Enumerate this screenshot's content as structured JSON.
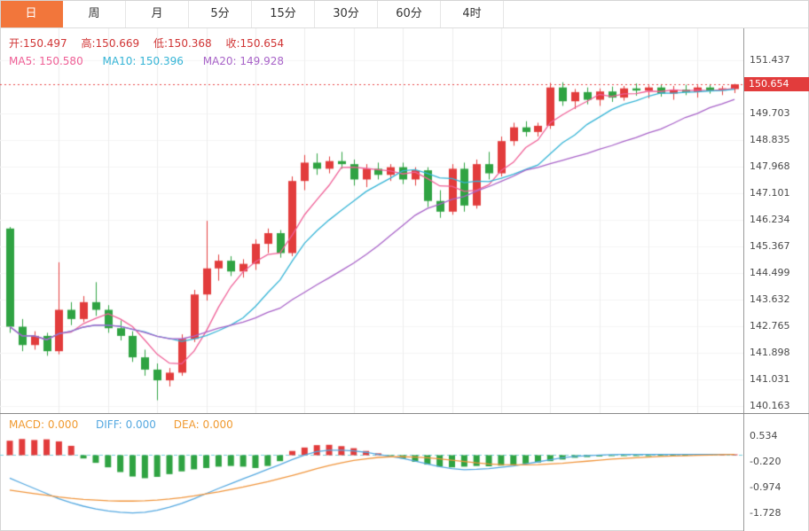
{
  "tabs": {
    "items": [
      {
        "label": "日",
        "active": true
      },
      {
        "label": "周",
        "active": false
      },
      {
        "label": "月",
        "active": false
      },
      {
        "label": "5分",
        "active": false
      },
      {
        "label": "15分",
        "active": false
      },
      {
        "label": "30分",
        "active": false
      },
      {
        "label": "60分",
        "active": false
      },
      {
        "label": "4时",
        "active": false
      }
    ]
  },
  "ohlc": {
    "open_label": "开:",
    "open": "150.497",
    "high_label": "高:",
    "high": "150.669",
    "low_label": "低:",
    "low": "150.368",
    "close_label": "收:",
    "close": "150.654"
  },
  "ma": {
    "ma5_label": "MA5:",
    "ma5": "150.580",
    "ma10_label": "MA10:",
    "ma10": "150.396",
    "ma20_label": "MA20:",
    "ma20": "149.928"
  },
  "macd_info": {
    "macd_label": "MACD:",
    "macd": "0.000",
    "diff_label": "DIFF:",
    "diff": "0.000",
    "dea_label": "DEA:",
    "dea": "0.000"
  },
  "colors": {
    "up": "#e23c3c",
    "down": "#2fa342",
    "ma5": "#ef5f96",
    "ma10": "#35b4d6",
    "ma20": "#a863c8",
    "diff_line": "#54a8e0",
    "dea_line": "#f0953c",
    "zero_dash": "#7ad0dc",
    "price_line": "#e84848",
    "price_tag_bg": "#e23c3c",
    "grid": "#ededed",
    "grid_h": "#f4f4f4",
    "active_tab": "#f2763b"
  },
  "chart_data": [
    {
      "type": "candlestick",
      "title": "",
      "y_ticks": [
        "151.437",
        "149.703",
        "148.835",
        "147.968",
        "147.101",
        "146.234",
        "145.367",
        "144.499",
        "143.632",
        "142.765",
        "141.898",
        "141.031",
        "140.163"
      ],
      "current_price": {
        "label": "150.654",
        "value": 150.654
      },
      "ma_periods": [
        5,
        10,
        20
      ],
      "grid": true,
      "candles": [
        [
          145.95,
          146.0,
          142.55,
          142.75
        ],
        [
          142.75,
          143.0,
          141.95,
          142.15
        ],
        [
          142.15,
          142.6,
          142.0,
          142.45
        ],
        [
          142.45,
          142.55,
          141.8,
          141.95
        ],
        [
          141.95,
          144.85,
          141.85,
          143.3
        ],
        [
          143.3,
          143.55,
          142.8,
          143.0
        ],
        [
          143.0,
          143.75,
          142.9,
          143.55
        ],
        [
          143.55,
          144.2,
          143.1,
          143.3
        ],
        [
          143.3,
          143.45,
          142.55,
          142.7
        ],
        [
          142.7,
          142.95,
          142.3,
          142.45
        ],
        [
          142.45,
          142.6,
          141.6,
          141.75
        ],
        [
          141.75,
          142.0,
          141.15,
          141.35
        ],
        [
          141.35,
          141.55,
          140.35,
          141.0
        ],
        [
          141.0,
          141.4,
          140.8,
          141.25
        ],
        [
          141.25,
          142.5,
          141.15,
          142.35
        ],
        [
          142.35,
          143.95,
          142.25,
          143.8
        ],
        [
          143.8,
          146.2,
          143.6,
          144.65
        ],
        [
          144.65,
          145.1,
          144.25,
          144.9
        ],
        [
          144.9,
          145.05,
          144.4,
          144.55
        ],
        [
          144.55,
          144.95,
          144.35,
          144.8
        ],
        [
          144.8,
          145.6,
          144.6,
          145.45
        ],
        [
          145.45,
          145.95,
          145.15,
          145.8
        ],
        [
          145.8,
          145.9,
          145.0,
          145.15
        ],
        [
          145.15,
          147.65,
          145.05,
          147.5
        ],
        [
          147.5,
          148.35,
          147.2,
          148.1
        ],
        [
          148.1,
          148.4,
          147.7,
          147.9
        ],
        [
          147.9,
          148.3,
          147.75,
          148.15
        ],
        [
          148.15,
          148.45,
          147.9,
          148.05
        ],
        [
          148.05,
          148.2,
          147.35,
          147.55
        ],
        [
          147.55,
          148.05,
          147.3,
          147.9
        ],
        [
          147.9,
          148.1,
          147.55,
          147.7
        ],
        [
          147.7,
          148.05,
          147.5,
          147.95
        ],
        [
          147.95,
          148.1,
          147.4,
          147.55
        ],
        [
          147.55,
          147.95,
          147.35,
          147.85
        ],
        [
          147.85,
          147.95,
          146.65,
          146.85
        ],
        [
          146.85,
          147.2,
          146.3,
          146.5
        ],
        [
          146.5,
          148.05,
          146.4,
          147.9
        ],
        [
          147.9,
          148.1,
          146.5,
          146.7
        ],
        [
          146.7,
          148.2,
          146.6,
          148.05
        ],
        [
          148.05,
          148.45,
          147.55,
          147.75
        ],
        [
          147.75,
          148.95,
          147.65,
          148.8
        ],
        [
          148.8,
          149.4,
          148.65,
          149.25
        ],
        [
          149.25,
          149.45,
          148.95,
          149.1
        ],
        [
          149.1,
          149.4,
          148.95,
          149.3
        ],
        [
          149.3,
          150.7,
          149.2,
          150.55
        ],
        [
          150.55,
          150.72,
          149.95,
          150.1
        ],
        [
          150.1,
          150.5,
          149.85,
          150.4
        ],
        [
          150.4,
          150.55,
          150.0,
          150.15
        ],
        [
          150.15,
          150.52,
          149.95,
          150.42
        ],
        [
          150.42,
          150.58,
          150.08,
          150.22
        ],
        [
          150.22,
          150.6,
          150.12,
          150.52
        ],
        [
          150.52,
          150.68,
          150.28,
          150.45
        ],
        [
          150.45,
          150.62,
          150.2,
          150.55
        ],
        [
          150.55,
          150.66,
          150.25,
          150.35
        ],
        [
          150.35,
          150.6,
          150.15,
          150.48
        ],
        [
          150.48,
          150.64,
          150.3,
          150.4
        ],
        [
          150.4,
          150.62,
          150.22,
          150.55
        ],
        [
          150.55,
          150.66,
          150.35,
          150.45
        ],
        [
          150.45,
          150.6,
          150.3,
          150.52
        ],
        [
          150.497,
          150.669,
          150.368,
          150.654
        ]
      ]
    },
    {
      "type": "macd",
      "y_ticks": [
        "0.534",
        "-0.220",
        "-0.974",
        "-1.728"
      ],
      "histogram": [
        0.4,
        0.45,
        0.42,
        0.44,
        0.38,
        0.25,
        -0.12,
        -0.25,
        -0.38,
        -0.52,
        -0.65,
        -0.7,
        -0.66,
        -0.58,
        -0.5,
        -0.44,
        -0.4,
        -0.36,
        -0.34,
        -0.36,
        -0.4,
        -0.34,
        -0.2,
        0.1,
        0.2,
        0.27,
        0.28,
        0.24,
        0.18,
        0.1,
        0.03,
        -0.04,
        -0.12,
        -0.22,
        -0.3,
        -0.36,
        -0.38,
        -0.36,
        -0.34,
        -0.35,
        -0.33,
        -0.3,
        -0.27,
        -0.24,
        -0.2,
        -0.15,
        -0.1,
        -0.08,
        -0.06,
        -0.05,
        -0.04,
        -0.03,
        -0.03,
        -0.02,
        -0.02,
        -0.01,
        -0.01,
        -0.01,
        0.0,
        0.0
      ],
      "diff": [
        -0.7,
        -0.85,
        -1.0,
        -1.15,
        -1.3,
        -1.42,
        -1.52,
        -1.6,
        -1.66,
        -1.7,
        -1.72,
        -1.7,
        -1.64,
        -1.55,
        -1.44,
        -1.3,
        -1.15,
        -1.0,
        -0.86,
        -0.72,
        -0.58,
        -0.44,
        -0.3,
        -0.15,
        -0.02,
        0.08,
        0.12,
        0.12,
        0.1,
        0.06,
        0.0,
        -0.06,
        -0.12,
        -0.2,
        -0.28,
        -0.36,
        -0.42,
        -0.45,
        -0.44,
        -0.42,
        -0.38,
        -0.34,
        -0.28,
        -0.22,
        -0.16,
        -0.1,
        -0.06,
        -0.04,
        -0.02,
        -0.01,
        0.0,
        0.0,
        0.0,
        0.0,
        0.0,
        0.0,
        0.0,
        0.0,
        0.0,
        0.0
      ],
      "dea": [
        -1.05,
        -1.1,
        -1.15,
        -1.2,
        -1.25,
        -1.29,
        -1.32,
        -1.34,
        -1.36,
        -1.37,
        -1.37,
        -1.36,
        -1.34,
        -1.31,
        -1.27,
        -1.22,
        -1.16,
        -1.1,
        -1.03,
        -0.96,
        -0.88,
        -0.8,
        -0.71,
        -0.62,
        -0.52,
        -0.42,
        -0.33,
        -0.25,
        -0.18,
        -0.13,
        -0.09,
        -0.07,
        -0.07,
        -0.08,
        -0.1,
        -0.13,
        -0.17,
        -0.21,
        -0.25,
        -0.28,
        -0.3,
        -0.31,
        -0.31,
        -0.3,
        -0.28,
        -0.26,
        -0.23,
        -0.2,
        -0.17,
        -0.14,
        -0.12,
        -0.1,
        -0.08,
        -0.06,
        -0.05,
        -0.04,
        -0.03,
        -0.02,
        -0.01,
        0.0
      ]
    }
  ]
}
